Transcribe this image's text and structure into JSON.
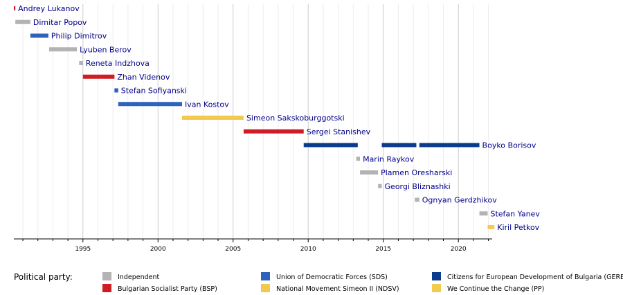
{
  "chart_data": {
    "type": "timeline",
    "title": "",
    "xlabel": "",
    "ylabel": "",
    "xlim": [
      1990.4,
      2022.25
    ],
    "xticks": [
      1995,
      2000,
      2005,
      2010,
      2015,
      2020
    ],
    "grid": true,
    "legend": {
      "title": "Political party:",
      "placement": "bottom",
      "parties": [
        {
          "key": "IND",
          "label": "Independent",
          "color": "#b3b3b3"
        },
        {
          "key": "BSP",
          "label": "Bulgarian Socialist Party (BSP)",
          "color": "#d01c24"
        },
        {
          "key": "SDS",
          "label": "Union of Democratic Forces (SDS)",
          "color": "#2e62bd"
        },
        {
          "key": "NDSV",
          "label": "National Movement Simeon II (NDSV)",
          "color": "#f2c94c"
        },
        {
          "key": "GERB",
          "label": "Citizens for European Development of Bulgaria (GERB)",
          "color": "#0b3b8c"
        },
        {
          "key": "PP",
          "label": "We Continue the Change (PP)",
          "color": "#f2cc4e"
        }
      ]
    },
    "rows": [
      {
        "name": "Andrey Lukanov",
        "terms": [
          {
            "start": 1990.4,
            "end": 1990.5,
            "party": "BSP"
          }
        ]
      },
      {
        "name": "Dimitar Popov",
        "terms": [
          {
            "start": 1990.5,
            "end": 1991.5,
            "party": "IND"
          }
        ]
      },
      {
        "name": "Philip Dimitrov",
        "terms": [
          {
            "start": 1991.5,
            "end": 1992.7,
            "party": "SDS"
          }
        ]
      },
      {
        "name": "Lyuben Berov",
        "terms": [
          {
            "start": 1992.75,
            "end": 1994.6,
            "party": "IND"
          }
        ]
      },
      {
        "name": "Reneta Indzhova",
        "terms": [
          {
            "start": 1994.75,
            "end": 1995.0,
            "party": "IND"
          }
        ]
      },
      {
        "name": "Zhan Videnov",
        "terms": [
          {
            "start": 1995.0,
            "end": 1997.1,
            "party": "BSP"
          }
        ]
      },
      {
        "name": "Stefan Sofiyanski",
        "terms": [
          {
            "start": 1997.1,
            "end": 1997.35,
            "party": "SDS"
          }
        ]
      },
      {
        "name": "Ivan Kostov",
        "terms": [
          {
            "start": 1997.35,
            "end": 2001.6,
            "party": "SDS"
          }
        ]
      },
      {
        "name": "Simeon Sakskoburggotski",
        "terms": [
          {
            "start": 2001.6,
            "end": 2005.7,
            "party": "NDSV"
          }
        ]
      },
      {
        "name": "Sergei Stanishev",
        "terms": [
          {
            "start": 2005.7,
            "end": 2009.7,
            "party": "BSP"
          }
        ]
      },
      {
        "name": "Boyko Borisov",
        "terms": [
          {
            "start": 2009.7,
            "end": 2013.3,
            "party": "GERB"
          },
          {
            "start": 2014.9,
            "end": 2017.2,
            "party": "GERB"
          },
          {
            "start": 2017.4,
            "end": 2021.4,
            "party": "GERB"
          }
        ]
      },
      {
        "name": "Marin Raykov",
        "terms": [
          {
            "start": 2013.2,
            "end": 2013.45,
            "party": "IND"
          }
        ]
      },
      {
        "name": "Plamen Oresharski",
        "terms": [
          {
            "start": 2013.45,
            "end": 2014.65,
            "party": "IND"
          }
        ]
      },
      {
        "name": "Georgi Bliznashki",
        "terms": [
          {
            "start": 2014.65,
            "end": 2014.9,
            "party": "IND"
          }
        ]
      },
      {
        "name": "Ognyan Gerdzhikov",
        "terms": [
          {
            "start": 2017.1,
            "end": 2017.4,
            "party": "IND"
          }
        ]
      },
      {
        "name": "Stefan Yanev",
        "terms": [
          {
            "start": 2021.4,
            "end": 2021.95,
            "party": "IND"
          }
        ]
      },
      {
        "name": "Kiril Petkov",
        "terms": [
          {
            "start": 2021.95,
            "end": 2022.4,
            "party": "PP"
          }
        ]
      }
    ]
  }
}
